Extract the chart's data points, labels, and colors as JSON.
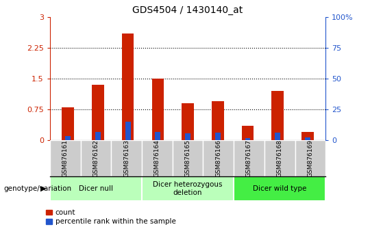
{
  "title": "GDS4504 / 1430140_at",
  "samples": [
    "GSM876161",
    "GSM876162",
    "GSM876163",
    "GSM876164",
    "GSM876165",
    "GSM876166",
    "GSM876167",
    "GSM876168",
    "GSM876169"
  ],
  "red_values": [
    0.8,
    1.35,
    2.6,
    1.5,
    0.9,
    0.95,
    0.35,
    1.2,
    0.2
  ],
  "blue_values": [
    0.1,
    0.2,
    0.45,
    0.2,
    0.17,
    0.18,
    0.05,
    0.18,
    0.07
  ],
  "ylim_left": [
    0,
    3
  ],
  "ylim_right": [
    0,
    100
  ],
  "yticks_left": [
    0,
    0.75,
    1.5,
    2.25,
    3
  ],
  "yticks_right": [
    0,
    25,
    50,
    75,
    100
  ],
  "ytick_labels_left": [
    "0",
    "0.75",
    "1.5",
    "2.25",
    "3"
  ],
  "ytick_labels_right": [
    "0",
    "25",
    "50",
    "75",
    "100%"
  ],
  "hlines": [
    0.75,
    1.5,
    2.25
  ],
  "groups": [
    {
      "label": "Dicer null",
      "start": 0,
      "end": 3
    },
    {
      "label": "Dicer heterozygous\ndeletion",
      "start": 3,
      "end": 6
    },
    {
      "label": "Dicer wild type",
      "start": 6,
      "end": 9
    }
  ],
  "group_colors": [
    "#BBFFBB",
    "#BBFFBB",
    "#44EE44"
  ],
  "group_dividers": [
    3,
    6
  ],
  "bar_width": 0.4,
  "red_color": "#CC2200",
  "blue_color": "#2255CC",
  "tick_bg_color": "#CCCCCC",
  "legend_red_label": "count",
  "legend_blue_label": "percentile rank within the sample",
  "left_axis_color": "#CC2200",
  "right_axis_color": "#2255CC",
  "genotype_label": "genotype/variation"
}
